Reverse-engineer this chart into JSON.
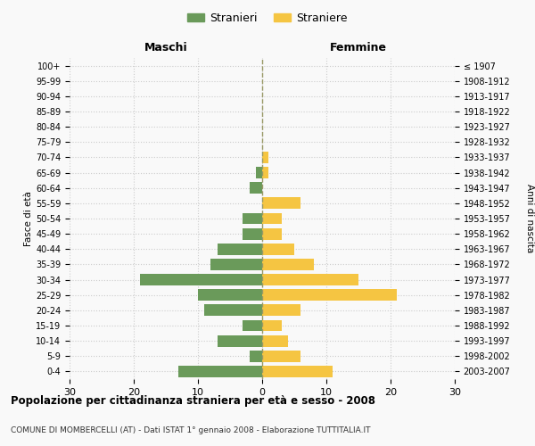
{
  "age_groups": [
    "100+",
    "95-99",
    "90-94",
    "85-89",
    "80-84",
    "75-79",
    "70-74",
    "65-69",
    "60-64",
    "55-59",
    "50-54",
    "45-49",
    "40-44",
    "35-39",
    "30-34",
    "25-29",
    "20-24",
    "15-19",
    "10-14",
    "5-9",
    "0-4"
  ],
  "birth_years": [
    "≤ 1907",
    "1908-1912",
    "1913-1917",
    "1918-1922",
    "1923-1927",
    "1928-1932",
    "1933-1937",
    "1938-1942",
    "1943-1947",
    "1948-1952",
    "1953-1957",
    "1958-1962",
    "1963-1967",
    "1968-1972",
    "1973-1977",
    "1978-1982",
    "1983-1987",
    "1988-1992",
    "1993-1997",
    "1998-2002",
    "2003-2007"
  ],
  "maschi": [
    0,
    0,
    0,
    0,
    0,
    0,
    0,
    1,
    2,
    0,
    3,
    3,
    7,
    8,
    19,
    10,
    9,
    3,
    7,
    2,
    13
  ],
  "femmine": [
    0,
    0,
    0,
    0,
    0,
    0,
    1,
    1,
    0,
    6,
    3,
    3,
    5,
    8,
    15,
    21,
    6,
    3,
    4,
    6,
    11
  ],
  "color_maschi": "#6a9a5a",
  "color_femmine": "#f5c542",
  "title_main": "Popolazione per cittadinanza straniera per età e sesso - 2008",
  "title_sub": "COMUNE DI MOMBERCELLI (AT) - Dati ISTAT 1° gennaio 2008 - Elaborazione TUTTITALIA.IT",
  "legend_maschi": "Stranieri",
  "legend_femmine": "Straniere",
  "xlabel_left": "Maschi",
  "xlabel_right": "Femmine",
  "ylabel_left": "Fasce di età",
  "ylabel_right": "Anni di nascita",
  "xlim": 30,
  "background_color": "#f9f9f9",
  "grid_color": "#cccccc"
}
